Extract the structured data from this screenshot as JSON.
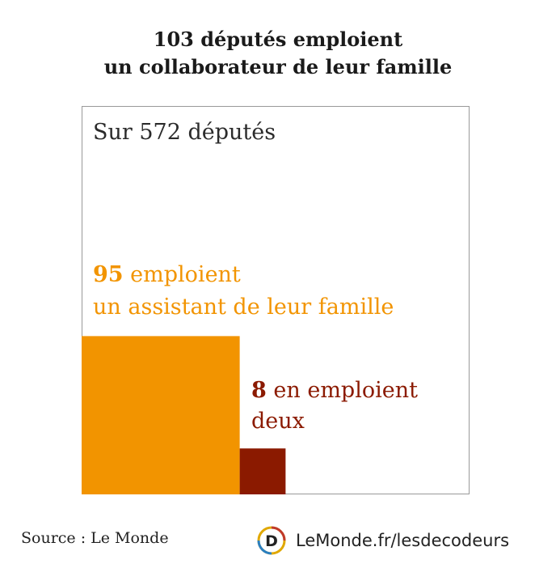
{
  "title": {
    "line1": "103 députés emploient",
    "line2": "un collaborateur de leur famille"
  },
  "chart_data": {
    "type": "area-proportion",
    "total": {
      "value": 572,
      "label": "Sur 572 députés"
    },
    "series": [
      {
        "name": "un assistant de leur famille",
        "value": 95,
        "number_label": "95",
        "label_line1": "emploient",
        "label_line2": "un assistant de leur famille",
        "color": "#F29400"
      },
      {
        "name": "deux",
        "value": 8,
        "number_label": "8",
        "label_line1": "en emploient",
        "label_line2": "deux",
        "color": "#8B1A00"
      }
    ]
  },
  "footer": {
    "source": "Source : Le Monde",
    "brand": "LeMonde.fr/lesdecodeurs",
    "logo_letter": "D"
  }
}
